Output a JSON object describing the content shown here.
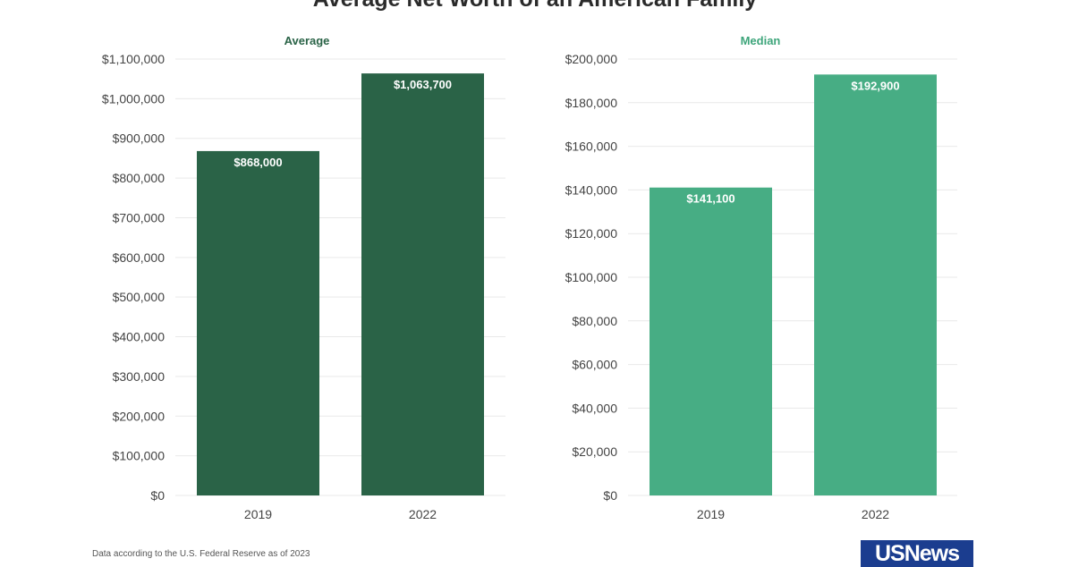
{
  "title": "Average Net Worth of an American Family",
  "footnote": "Data according to the U.S. Federal Reserve as of 2023",
  "logo_text": "USNews",
  "chart_data": [
    {
      "type": "bar",
      "title": "Average",
      "categories": [
        "2019",
        "2022"
      ],
      "values": [
        868000,
        1063700
      ],
      "data_labels": [
        "$868,000",
        "$1,063,700"
      ],
      "yticks": [
        "$0",
        "$100,000",
        "$200,000",
        "$300,000",
        "$400,000",
        "$500,000",
        "$600,000",
        "$700,000",
        "$800,000",
        "$900,000",
        "$1,000,000",
        "$1,100,000"
      ],
      "ylim": [
        0,
        1100000
      ],
      "ystep": 100000,
      "grid": true,
      "color": "#2a6347",
      "title_color": "#2a6347"
    },
    {
      "type": "bar",
      "title": "Median",
      "categories": [
        "2019",
        "2022"
      ],
      "values": [
        141100,
        192900
      ],
      "data_labels": [
        "$141,100",
        "$192,900"
      ],
      "yticks": [
        "$0",
        "$20,000",
        "$40,000",
        "$60,000",
        "$80,000",
        "$100,000",
        "$120,000",
        "$140,000",
        "$160,000",
        "$180,000",
        "$200,000"
      ],
      "ylim": [
        0,
        200000
      ],
      "ystep": 20000,
      "grid": true,
      "color": "#47ad84",
      "title_color": "#3ea57b"
    }
  ]
}
